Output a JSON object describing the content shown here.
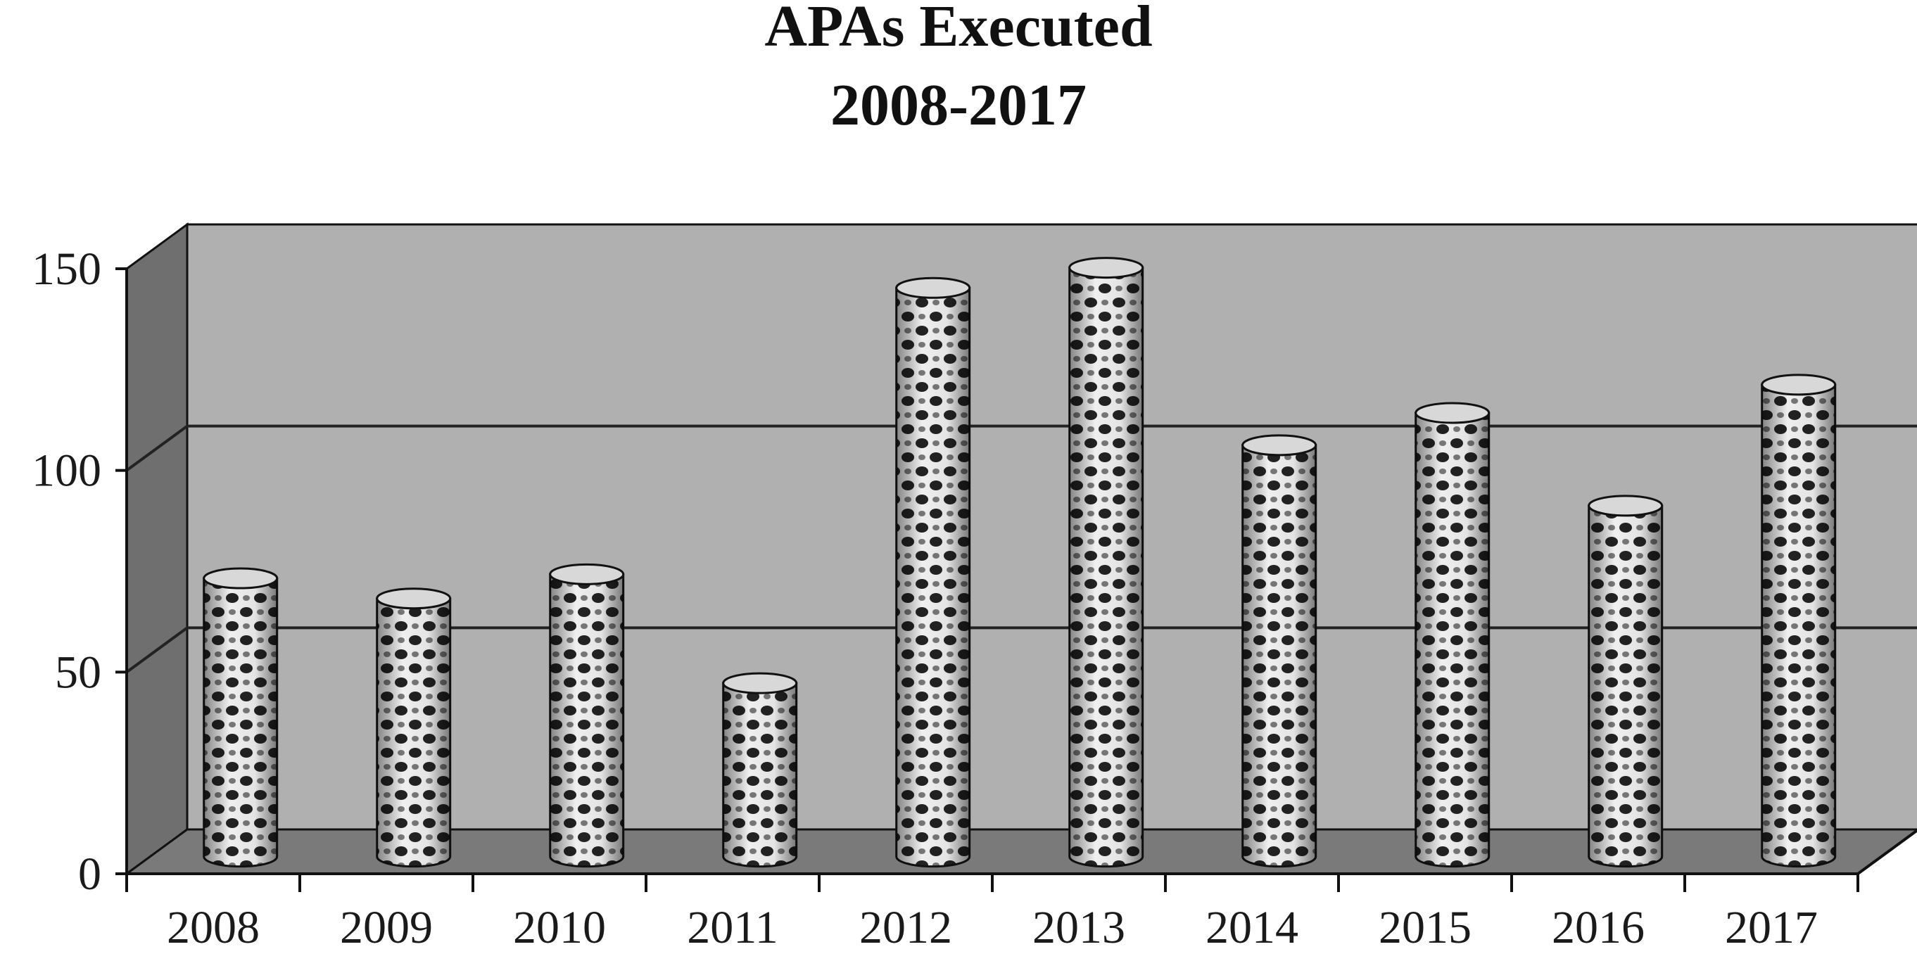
{
  "chart_data": {
    "type": "bar",
    "title": "APAs Executed",
    "subtitle": "2008-2017",
    "categories": [
      "2008",
      "2009",
      "2010",
      "2011",
      "2012",
      "2013",
      "2014",
      "2015",
      "2016",
      "2017"
    ],
    "values": [
      69,
      64,
      70,
      43,
      141,
      146,
      102,
      110,
      87,
      117
    ],
    "xlabel": "",
    "ylabel": "",
    "ylim": [
      0,
      150
    ],
    "yticks": [
      "0",
      "50",
      "100",
      "150"
    ],
    "grid": true,
    "legend": "none",
    "style": "3d-cylinder",
    "colors": {
      "back_wall": "#b0b0b0",
      "side_wall": "#6f6f6f",
      "floor": "#7a7a7a",
      "gridline": "#222222",
      "bar_dark": "#2a2a2a",
      "bar_light": "#f2f2f2"
    }
  }
}
